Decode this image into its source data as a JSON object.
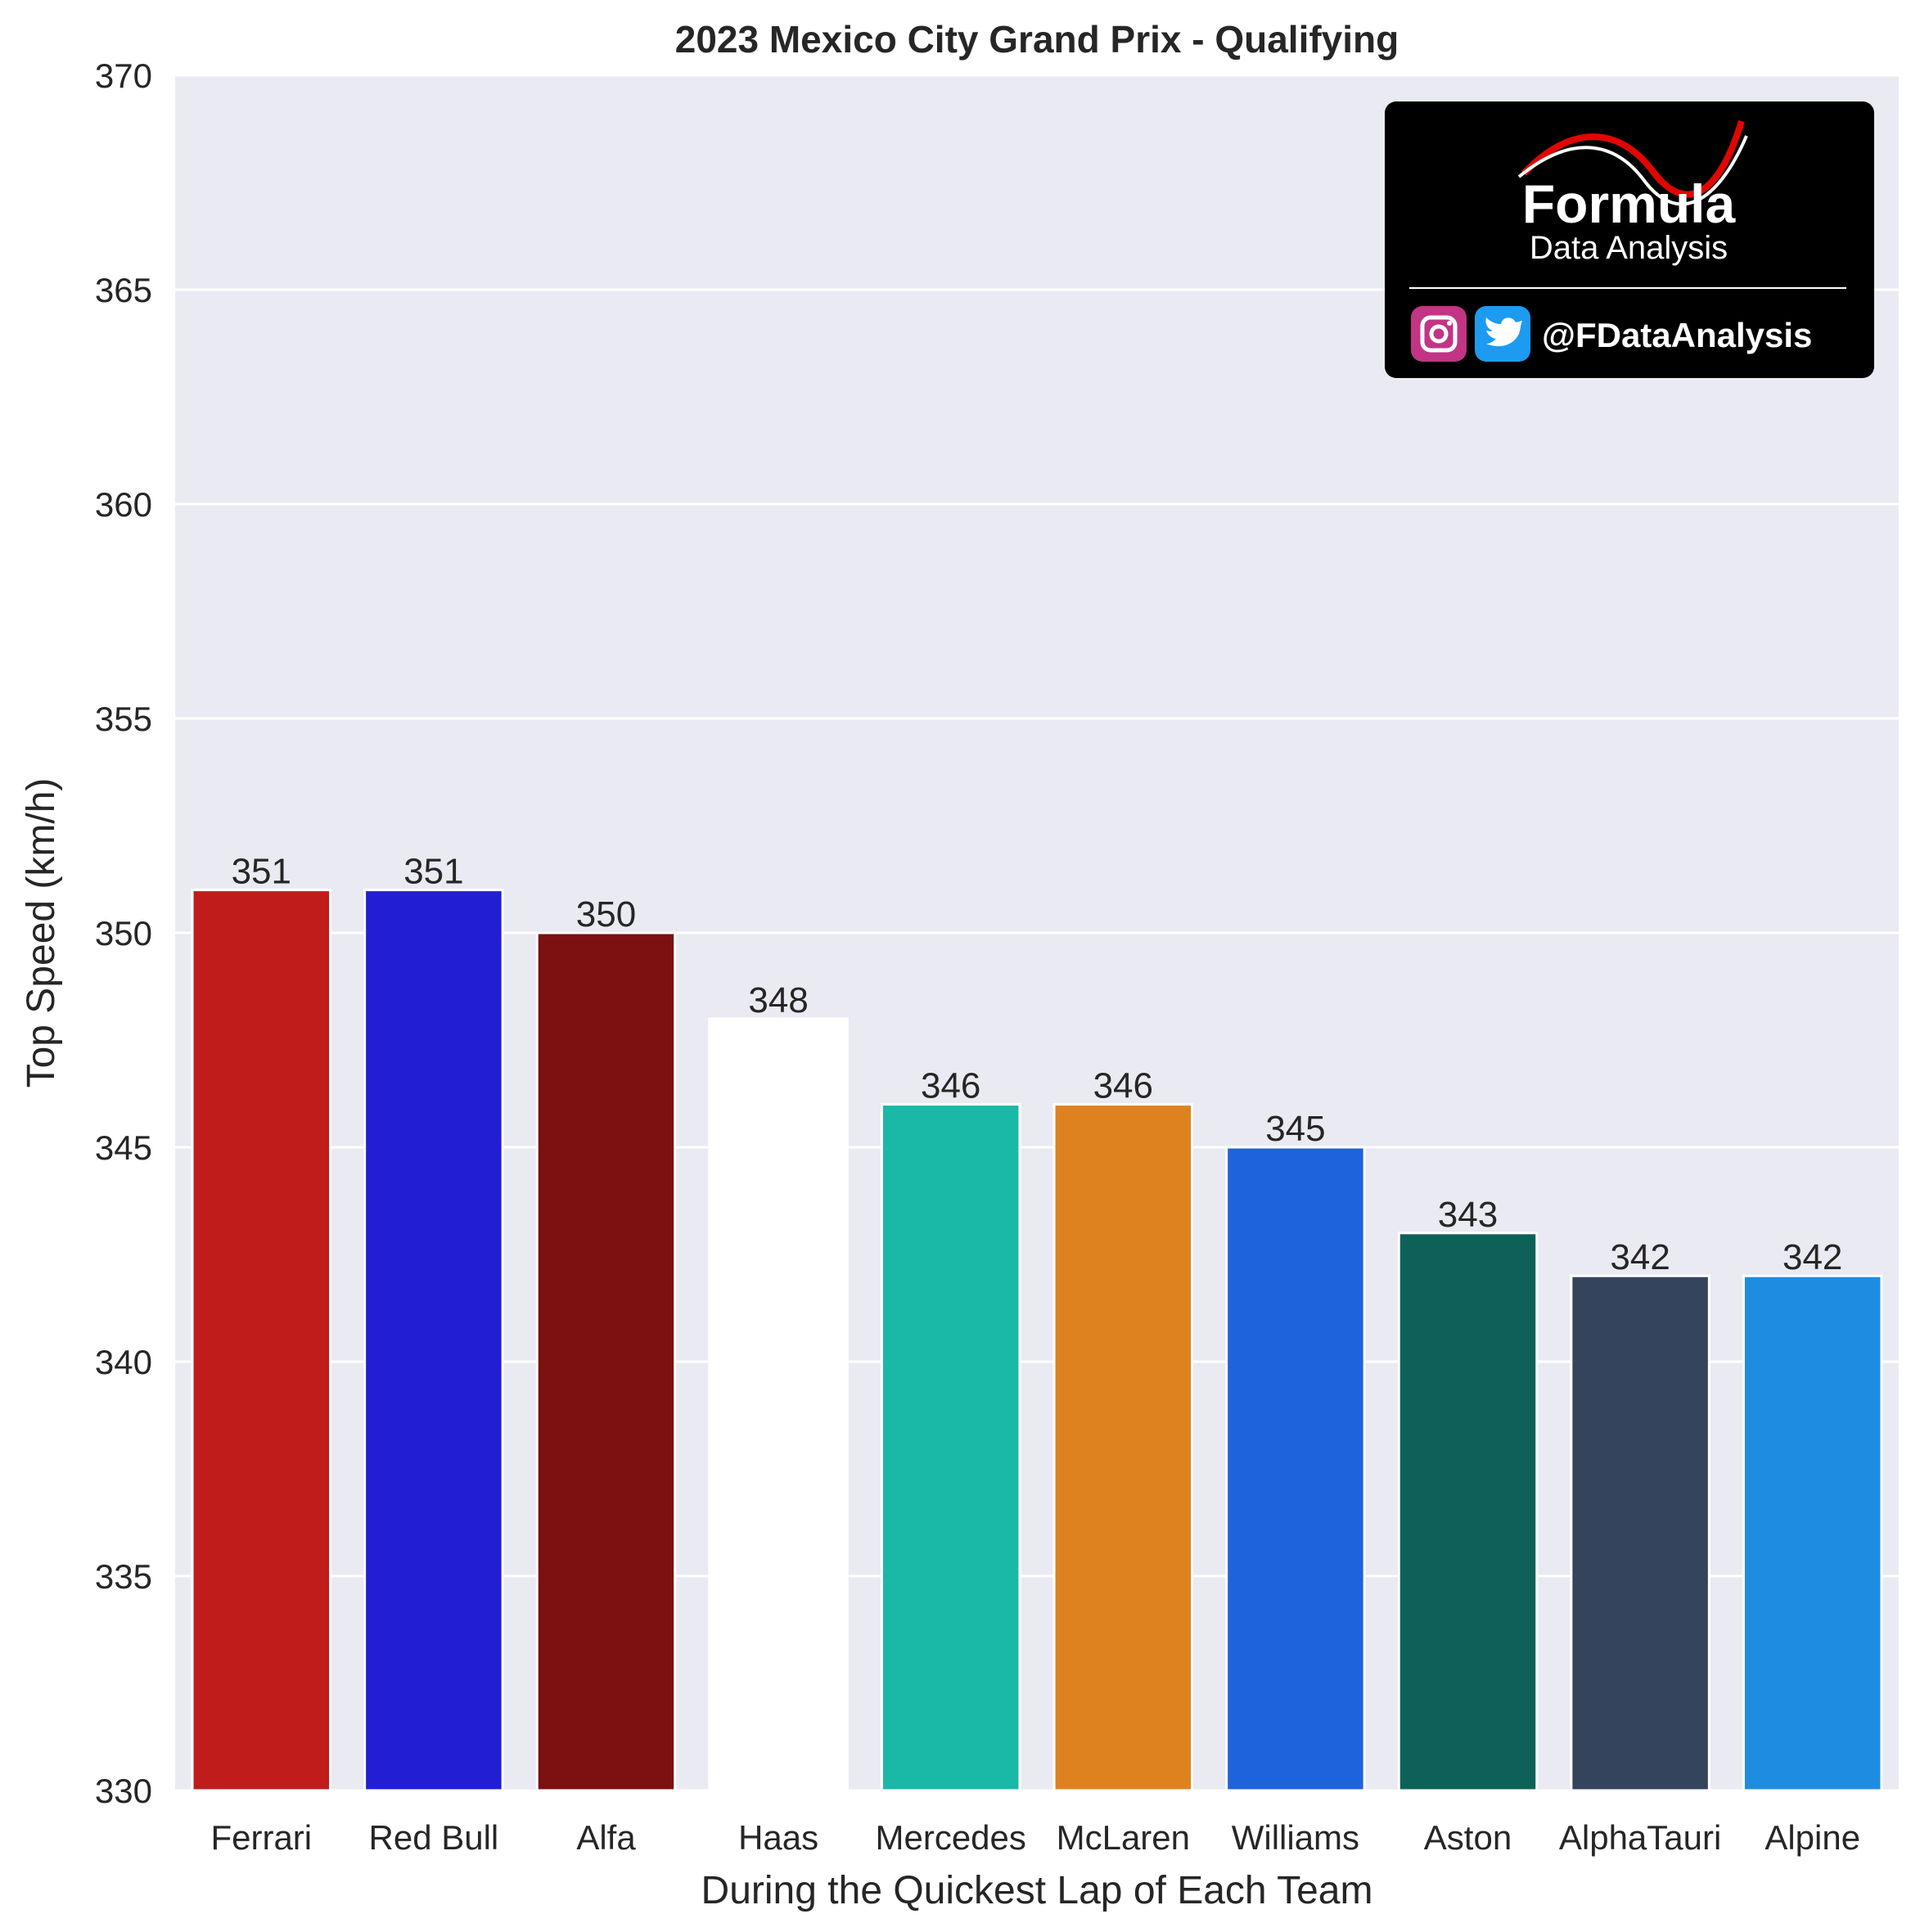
{
  "chart_data": {
    "type": "bar",
    "title": "2023 Mexico City Grand Prix - Qualifying",
    "xlabel": "During the Quickest Lap of Each Team",
    "ylabel": "Top Speed (km/h)",
    "categories": [
      "Ferrari",
      "Red Bull",
      "Alfa",
      "Haas",
      "Mercedes",
      "McLaren",
      "Williams",
      "Aston",
      "AlphaTauri",
      "Alpine"
    ],
    "values": [
      351,
      351,
      350,
      348,
      346,
      346,
      345,
      343,
      342,
      342
    ],
    "colors": [
      "#c01c1c",
      "#221ed3",
      "#7d1010",
      "#ffffff",
      "#1ab8a7",
      "#de821f",
      "#1f63dc",
      "#0d6158",
      "#34445c",
      "#1e8ce0"
    ],
    "ylim": [
      330,
      370
    ],
    "yticks": [
      330,
      335,
      340,
      345,
      350,
      355,
      360,
      365,
      370
    ],
    "grid": true,
    "background": "#eaeaf2",
    "legend": "none"
  },
  "logo": {
    "word": "Formula",
    "subtitle": "Data Analysis",
    "handle": "@FDataAnalysis",
    "icons": [
      "instagram-icon",
      "twitter-icon"
    ]
  }
}
